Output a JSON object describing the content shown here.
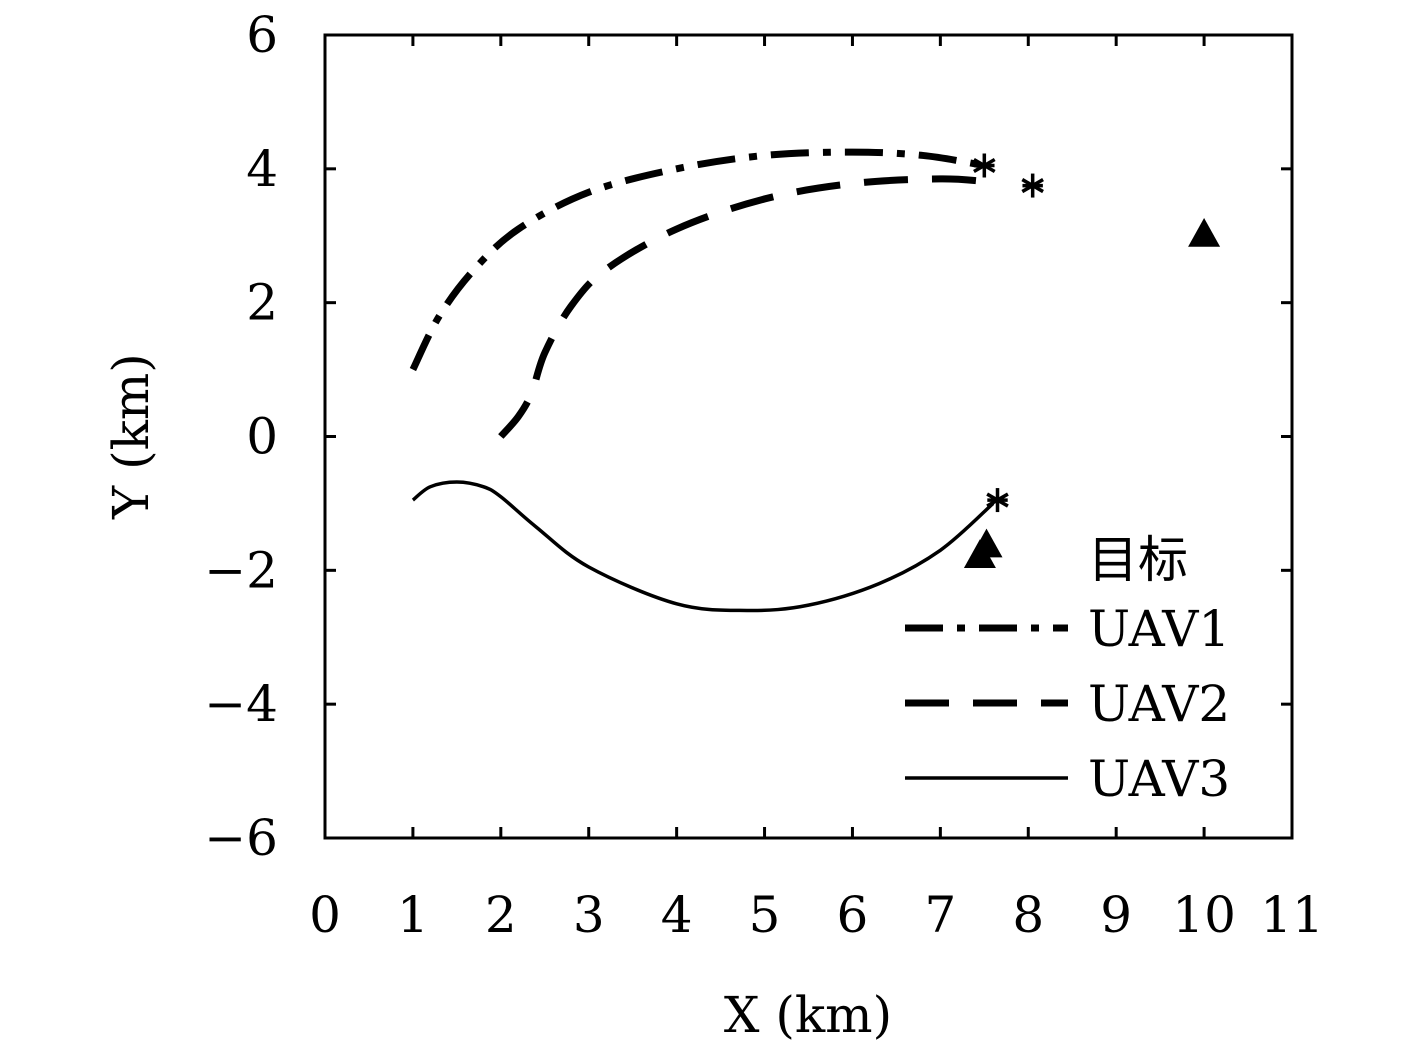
{
  "chart_data": {
    "type": "line",
    "xlabel": "X (km)",
    "ylabel": "Y (km)",
    "xlim": [
      0,
      11
    ],
    "ylim": [
      -6,
      6
    ],
    "xticks": [
      0,
      1,
      2,
      3,
      4,
      5,
      6,
      7,
      8,
      9,
      10,
      11
    ],
    "yticks": [
      -6,
      -4,
      -2,
      0,
      2,
      4,
      6
    ],
    "xtick_labels": [
      "0",
      "1",
      "2",
      "3",
      "4",
      "5",
      "6",
      "7",
      "8",
      "9",
      "10",
      "11"
    ],
    "ytick_labels": [
      "−6",
      "−4",
      "−2",
      "0",
      "2",
      "4",
      "6"
    ],
    "grid": false,
    "legend_position": "bottom-right",
    "series": [
      {
        "name": "UAV1",
        "style": "dash-dot",
        "x": [
          1.0,
          1.3,
          1.7,
          2.2,
          3.0,
          4.0,
          5.0,
          6.0,
          6.8,
          7.5
        ],
        "y": [
          1.0,
          1.8,
          2.5,
          3.1,
          3.65,
          4.0,
          4.2,
          4.25,
          4.2,
          4.05
        ]
      },
      {
        "name": "UAV2",
        "style": "dashed",
        "x": [
          2.0,
          2.2,
          2.35,
          2.5,
          2.8,
          3.2,
          4.0,
          5.0,
          6.0,
          7.0,
          7.6
        ],
        "y": [
          0.0,
          0.3,
          0.65,
          1.25,
          1.95,
          2.5,
          3.1,
          3.55,
          3.78,
          3.85,
          3.8
        ]
      },
      {
        "name": "UAV3",
        "style": "solid",
        "x": [
          1.0,
          1.2,
          1.5,
          1.8,
          2.0,
          2.4,
          3.0,
          4.0,
          4.8,
          5.5,
          6.3,
          7.0,
          7.6
        ],
        "y": [
          -0.95,
          -0.75,
          -0.68,
          -0.75,
          -0.9,
          -1.35,
          -1.95,
          -2.5,
          -2.6,
          -2.52,
          -2.2,
          -1.7,
          -1.0
        ]
      }
    ],
    "end_markers": [
      {
        "marker": "asterisk",
        "x": 7.5,
        "y": 4.05
      },
      {
        "marker": "asterisk",
        "x": 8.05,
        "y": 3.75
      },
      {
        "marker": "asterisk",
        "x": 7.65,
        "y": -0.95
      }
    ],
    "targets": {
      "name": "目标",
      "marker": "triangle",
      "points": [
        {
          "x": 10.0,
          "y": 3.05
        },
        {
          "x": 7.45,
          "y": -1.75
        }
      ]
    }
  }
}
